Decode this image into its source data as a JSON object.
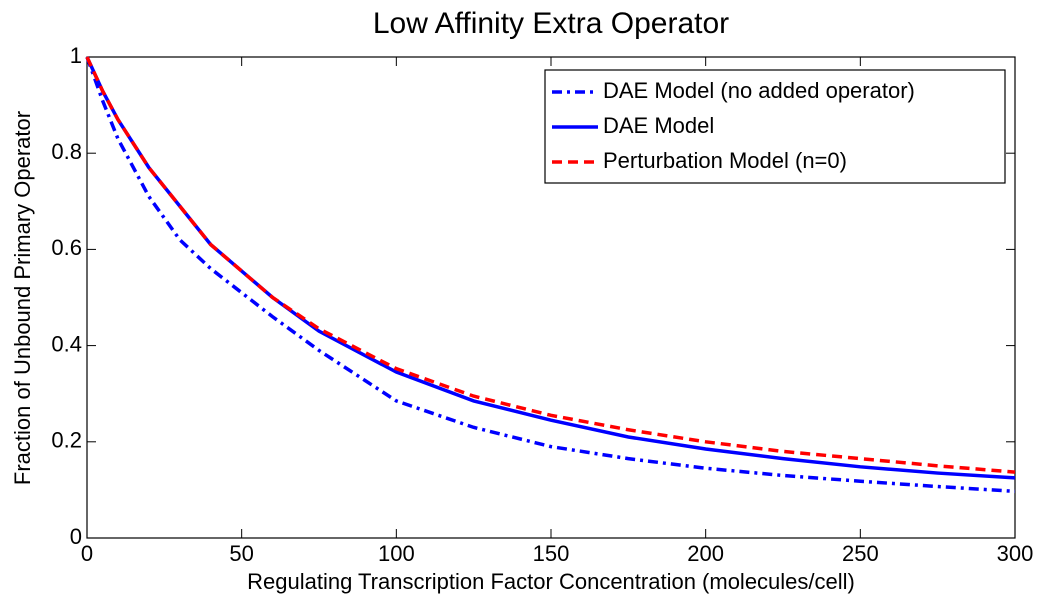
{
  "chart_data": {
    "type": "line",
    "title": "Low Affinity Extra Operator",
    "x_label": "Regulating Transcription Factor Concentration (molecules/cell)",
    "y_label": "Fraction of Unbound Primary Operator",
    "x": [
      0,
      5,
      10,
      20,
      30,
      40,
      50,
      60,
      75,
      100,
      125,
      150,
      175,
      200,
      225,
      250,
      275,
      300
    ],
    "series": [
      {
        "name": "DAE Model (no added operator)",
        "color": "#0000ff",
        "linestyle": "dashdot",
        "values": [
          1.0,
          0.91,
          0.83,
          0.71,
          0.62,
          0.56,
          0.51,
          0.46,
          0.39,
          0.285,
          0.23,
          0.19,
          0.165,
          0.145,
          0.13,
          0.118,
          0.107,
          0.097
        ]
      },
      {
        "name": "DAE Model",
        "color": "#0000ff",
        "linestyle": "solid",
        "values": [
          1.0,
          0.93,
          0.87,
          0.77,
          0.69,
          0.61,
          0.555,
          0.5,
          0.43,
          0.345,
          0.285,
          0.245,
          0.21,
          0.185,
          0.165,
          0.148,
          0.135,
          0.125
        ]
      },
      {
        "name": "Perturbation Model (n=0)",
        "color": "#ff0000",
        "linestyle": "dashed",
        "values": [
          1.0,
          0.93,
          0.87,
          0.77,
          0.69,
          0.61,
          0.555,
          0.5,
          0.435,
          0.352,
          0.295,
          0.255,
          0.225,
          0.2,
          0.18,
          0.165,
          0.15,
          0.137
        ]
      }
    ],
    "xlim": [
      0,
      300
    ],
    "xticks": [
      0,
      50,
      100,
      150,
      200,
      250,
      300
    ],
    "ylim": [
      0,
      1
    ],
    "yticks": [
      0,
      0.2,
      0.4,
      0.6,
      0.8,
      1
    ],
    "legend": "upper right",
    "grid": false
  }
}
